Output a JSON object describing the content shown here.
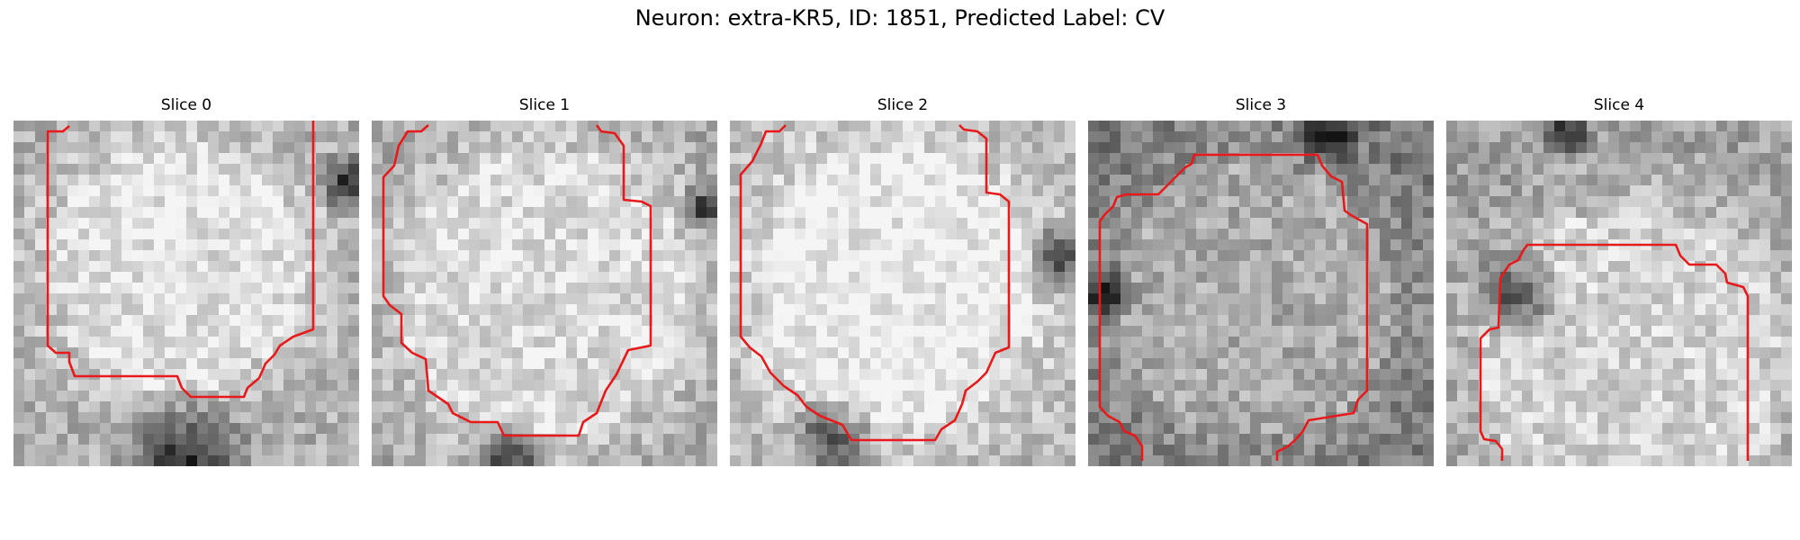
{
  "figure": {
    "title": "Neuron: extra-KR5, ID: 1851, Predicted Label: CV"
  },
  "panels": [
    {
      "title": "Slice 0"
    },
    {
      "title": "Slice 1"
    },
    {
      "title": "Slice 2"
    },
    {
      "title": "Slice 3"
    },
    {
      "title": "Slice 4"
    }
  ],
  "colors": {
    "contour": "#e8191a",
    "background": "#ffffff"
  }
}
